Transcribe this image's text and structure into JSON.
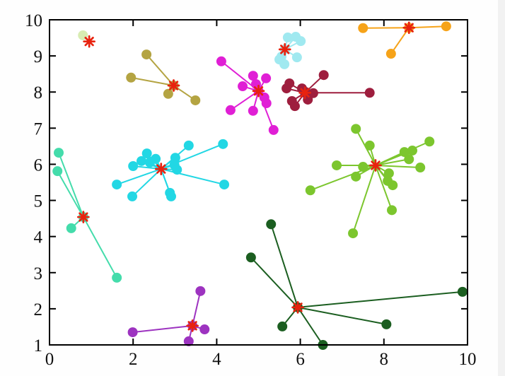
{
  "figure": {
    "kind": "cluster-scatter-figure",
    "background": "#ffffff",
    "axis_color": "#000000"
  },
  "chart_data": {
    "type": "scatter",
    "title": "",
    "xlabel": "",
    "ylabel": "",
    "xlim": [
      0,
      10
    ],
    "ylim": [
      1,
      10
    ],
    "xticks": [
      0,
      2,
      4,
      6,
      8,
      10
    ],
    "yticks": [
      1,
      2,
      3,
      4,
      5,
      6,
      7,
      8,
      9,
      10
    ],
    "grid": false,
    "legend": "none",
    "centroid_marker": {
      "shape": "asterisk",
      "color": "#e8230f"
    },
    "clusters": [
      {
        "name": "pale-green",
        "color": "#d8ecb2",
        "centroid": [
          0.95,
          9.4
        ],
        "centroid_dot": false,
        "points": [
          [
            0.8,
            9.57
          ]
        ]
      },
      {
        "name": "dark-khaki",
        "color": "#b4a442",
        "centroid": [
          2.97,
          8.18
        ],
        "centroid_dot": true,
        "points": [
          [
            2.32,
            9.04
          ],
          [
            1.95,
            8.4
          ],
          [
            2.84,
            7.95
          ],
          [
            3.49,
            7.77
          ]
        ]
      },
      {
        "name": "magenta",
        "color": "#e01fd5",
        "centroid": [
          5.0,
          8.03
        ],
        "centroid_dot": true,
        "points": [
          [
            4.11,
            8.85
          ],
          [
            4.87,
            8.45
          ],
          [
            5.18,
            8.38
          ],
          [
            4.62,
            8.16
          ],
          [
            4.94,
            8.22
          ],
          [
            5.14,
            7.85
          ],
          [
            5.19,
            7.69
          ],
          [
            4.33,
            7.5
          ],
          [
            4.87,
            7.48
          ],
          [
            5.36,
            6.95
          ]
        ]
      },
      {
        "name": "pale-turquoise",
        "color": "#a0e9f0",
        "centroid": [
          5.63,
          9.18
        ],
        "centroid_dot": true,
        "points": [
          [
            5.7,
            9.51
          ],
          [
            5.89,
            9.53
          ],
          [
            6.01,
            9.41
          ],
          [
            5.55,
            8.98
          ],
          [
            5.5,
            8.9
          ],
          [
            5.92,
            8.96
          ],
          [
            5.62,
            8.77
          ]
        ]
      },
      {
        "name": "orange",
        "color": "#f6a319",
        "centroid": [
          8.6,
          9.78
        ],
        "centroid_dot": true,
        "points": [
          [
            7.5,
            9.77
          ],
          [
            9.49,
            9.82
          ],
          [
            8.17,
            9.06
          ]
        ]
      },
      {
        "name": "dark-red",
        "color": "#9e1e3e",
        "centroid": [
          6.11,
          7.98
        ],
        "centroid_dot": true,
        "points": [
          [
            6.56,
            8.47
          ],
          [
            5.74,
            8.24
          ],
          [
            5.67,
            8.1
          ],
          [
            6.04,
            8.1
          ],
          [
            6.31,
            7.97
          ],
          [
            7.66,
            7.98
          ],
          [
            5.8,
            7.75
          ],
          [
            5.87,
            7.61
          ],
          [
            6.18,
            7.79
          ],
          [
            6.13,
            8.0
          ]
        ]
      },
      {
        "name": "cyan",
        "color": "#22d7e4",
        "centroid": [
          2.67,
          5.87
        ],
        "centroid_dot": false,
        "points": [
          [
            2.33,
            6.3
          ],
          [
            2.2,
            6.09
          ],
          [
            2.0,
            5.95
          ],
          [
            2.4,
            6.05
          ],
          [
            2.54,
            6.15
          ],
          [
            3.01,
            6.18
          ],
          [
            3.33,
            6.52
          ],
          [
            4.15,
            6.56
          ],
          [
            2.99,
            5.98
          ],
          [
            3.05,
            5.85
          ],
          [
            1.61,
            5.44
          ],
          [
            4.18,
            5.44
          ],
          [
            1.98,
            5.11
          ],
          [
            2.88,
            5.21
          ],
          [
            2.91,
            5.11
          ]
        ]
      },
      {
        "name": "spring-green",
        "color": "#44dcab",
        "centroid": [
          0.81,
          4.54
        ],
        "centroid_dot": true,
        "points": [
          [
            0.22,
            6.32
          ],
          [
            0.19,
            5.81
          ],
          [
            0.52,
            4.23
          ],
          [
            1.61,
            2.86
          ]
        ]
      },
      {
        "name": "yellow-green",
        "color": "#7cc62e",
        "centroid": [
          7.8,
          5.97
        ],
        "centroid_dot": false,
        "points": [
          [
            7.33,
            6.98
          ],
          [
            7.66,
            6.52
          ],
          [
            9.09,
            6.63
          ],
          [
            8.49,
            6.34
          ],
          [
            8.68,
            6.38
          ],
          [
            8.6,
            6.14
          ],
          [
            8.87,
            5.91
          ],
          [
            6.87,
            5.97
          ],
          [
            7.5,
            5.93
          ],
          [
            7.33,
            5.66
          ],
          [
            8.12,
            5.75
          ],
          [
            8.09,
            5.54
          ],
          [
            8.21,
            5.42
          ],
          [
            6.24,
            5.28
          ],
          [
            8.19,
            4.73
          ],
          [
            7.26,
            4.09
          ]
        ]
      },
      {
        "name": "dark-green",
        "color": "#1b5e20",
        "centroid": [
          5.94,
          2.04
        ],
        "centroid_dot": true,
        "points": [
          [
            5.3,
            4.34
          ],
          [
            4.82,
            3.42
          ],
          [
            9.88,
            2.47
          ],
          [
            8.06,
            1.57
          ],
          [
            5.57,
            1.51
          ],
          [
            6.54,
            1.0
          ]
        ]
      },
      {
        "name": "purple",
        "color": "#9d33c0",
        "centroid": [
          3.42,
          1.53
        ],
        "centroid_dot": true,
        "points": [
          [
            3.61,
            2.49
          ],
          [
            1.99,
            1.35
          ],
          [
            3.71,
            1.43
          ],
          [
            3.33,
            1.1
          ]
        ]
      }
    ]
  }
}
